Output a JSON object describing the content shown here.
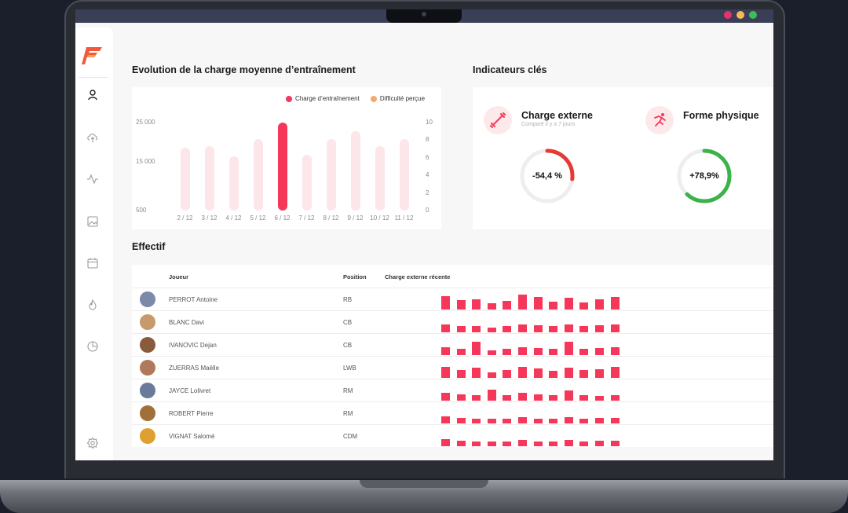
{
  "window_dots": [
    "#e8316b",
    "#f7b955",
    "#3fbd5c"
  ],
  "sidebar": {
    "icons": [
      "user-icon",
      "upload-cloud-icon",
      "activity-icon",
      "image-icon",
      "calendar-icon",
      "fire-icon",
      "pie-chart-icon",
      "settings-icon"
    ]
  },
  "chart_section": {
    "title": "Evolution de la charge moyenne d’entraînement"
  },
  "chart_data": {
    "type": "bar",
    "title": "",
    "legend": [
      "Charge d’entraînement",
      "Difficulté perçue"
    ],
    "legend_colors": [
      "#f5375a",
      "#f7a96b"
    ],
    "categories": [
      "2 / 12",
      "3 / 12",
      "4 / 12",
      "5 / 12",
      "6 / 12",
      "7 / 12",
      "8 / 12",
      "9 / 12",
      "10 / 12",
      "11 / 12"
    ],
    "values": [
      18000,
      18500,
      15500,
      20500,
      25000,
      16000,
      20500,
      22500,
      18500,
      20500
    ],
    "highlight_index": 4,
    "y_left_ticks": [
      "25 000",
      "15 000",
      "500"
    ],
    "y_right_ticks": [
      "10",
      "8",
      "6",
      "4",
      "2",
      "0"
    ],
    "ylim": [
      500,
      25000
    ],
    "bar_color": "#fde6ea",
    "highlight_color": "#f5375a"
  },
  "kpi_section": {
    "title": "Indicateurs clés",
    "cards": [
      {
        "title": "Charge externe",
        "subtitle": "Comparé il y a 7 jours",
        "value": "-54,4 %",
        "fraction": 0.27,
        "color": "#e63b34"
      },
      {
        "title": "Forme physique",
        "subtitle": "",
        "value": "+78,9%",
        "fraction": 0.62,
        "color": "#3cb34a"
      }
    ]
  },
  "effectif": {
    "title": "Effectif",
    "headers": {
      "player": "Joueur",
      "position": "Position",
      "recent_load": "Charge externe récente"
    },
    "rows": [
      {
        "name": "PERROT Antoine",
        "position": "RB",
        "avatar_color": "#7a8aa8",
        "loads": [
          0.9,
          0.65,
          0.7,
          0.4,
          0.6,
          1.0,
          0.85,
          0.55,
          0.8,
          0.45,
          0.7,
          0.85
        ]
      },
      {
        "name": "BLANC Davi",
        "position": "CB",
        "avatar_color": "#c79a6c",
        "loads": [
          0.5,
          0.4,
          0.4,
          0.3,
          0.4,
          0.5,
          0.45,
          0.4,
          0.5,
          0.4,
          0.45,
          0.5
        ]
      },
      {
        "name": "IVANOVIC Dejan",
        "position": "CB",
        "avatar_color": "#8a5a3c",
        "loads": [
          0.5,
          0.4,
          0.9,
          0.3,
          0.4,
          0.5,
          0.45,
          0.4,
          0.9,
          0.4,
          0.45,
          0.5
        ]
      },
      {
        "name": "ZUERRAS Maëlle",
        "position": "LWB",
        "avatar_color": "#b07a5a",
        "loads": [
          0.75,
          0.5,
          0.7,
          0.35,
          0.55,
          0.75,
          0.65,
          0.45,
          0.7,
          0.5,
          0.6,
          0.75
        ]
      },
      {
        "name": "JAYCE Lolivret",
        "position": "RM",
        "avatar_color": "#6a7a9a",
        "loads": [
          0.5,
          0.4,
          0.35,
          0.75,
          0.35,
          0.5,
          0.4,
          0.35,
          0.7,
          0.35,
          0.3,
          0.35
        ]
      },
      {
        "name": "ROBERT Pierre",
        "position": "RM",
        "avatar_color": "#a0703a",
        "loads": [
          0.45,
          0.35,
          0.3,
          0.3,
          0.3,
          0.4,
          0.3,
          0.3,
          0.4,
          0.3,
          0.35,
          0.35
        ]
      },
      {
        "name": "VIGNAT Salomé",
        "position": "CDM",
        "avatar_color": "#e0a030",
        "loads": [
          0.45,
          0.35,
          0.3,
          0.3,
          0.3,
          0.4,
          0.3,
          0.3,
          0.4,
          0.3,
          0.35,
          0.35
        ]
      }
    ]
  }
}
